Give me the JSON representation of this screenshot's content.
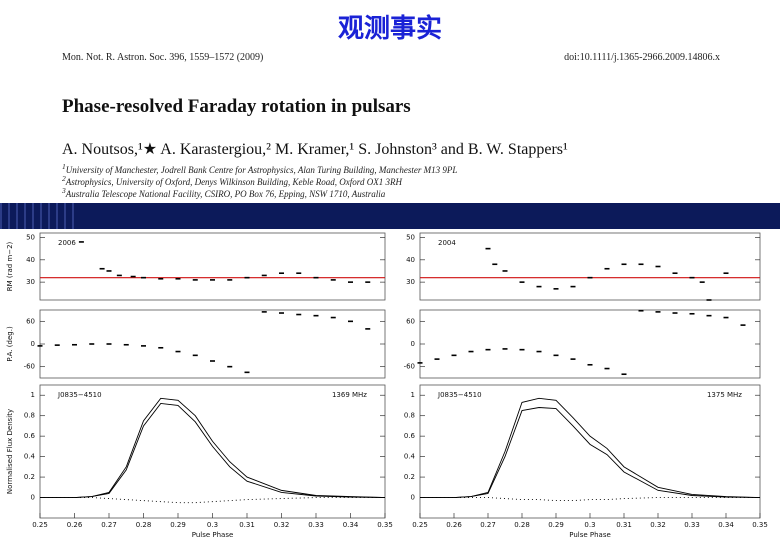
{
  "slide_title": "观测事实",
  "paper": {
    "journal": "Mon. Not. R. Astron. Soc. 396, 1559–1572 (2009)",
    "doi": "doi:10.1111/j.1365-2966.2009.14806.x",
    "title": "Phase-resolved Faraday rotation in pulsars",
    "authors": "A. Noutsos,¹★ A. Karastergiou,² M. Kramer,¹ S. Johnston³ and B. W. Stappers¹",
    "affiliations": [
      {
        "mark": "1",
        "text": "University of Manchester, Jodrell Bank Centre for Astrophysics, Alan Turing Building, Manchester M13 9PL"
      },
      {
        "mark": "2",
        "text": "Astrophysics, University of Oxford, Denys Wilkinson Building, Keble Road, Oxford OX1 3RH"
      },
      {
        "mark": "3",
        "text": "Australia Telescope National Facility, CSIRO, PO Box 76, Epping, NSW 1710, Australia"
      }
    ]
  },
  "chart_data": [
    {
      "type": "scatter",
      "ylabel": "RM (rad m−2)",
      "annotations": [
        "2006"
      ],
      "x": [
        0.262,
        0.268,
        0.27,
        0.273,
        0.277,
        0.28,
        0.285,
        0.29,
        0.295,
        0.3,
        0.305,
        0.31,
        0.315,
        0.32,
        0.325,
        0.33,
        0.335,
        0.34,
        0.345
      ],
      "series": [
        {
          "name": "RM",
          "color": "#000000",
          "values": [
            48,
            36,
            35,
            33,
            32.5,
            32,
            31.5,
            31.5,
            31,
            31,
            31,
            32,
            33,
            34,
            34,
            32,
            31,
            30,
            30
          ]
        }
      ],
      "xlim": [
        0.25,
        0.35
      ],
      "ylim": [
        22,
        52
      ],
      "yticks": [
        30,
        40,
        50
      ],
      "reference_line": 32,
      "reference_color": "#d01010"
    },
    {
      "type": "scatter",
      "ylabel": "P.A. (deg.)",
      "x": [
        0.25,
        0.255,
        0.26,
        0.265,
        0.27,
        0.275,
        0.28,
        0.285,
        0.29,
        0.295,
        0.3,
        0.305,
        0.31,
        0.315,
        0.32,
        0.325,
        0.33,
        0.335,
        0.34,
        0.345
      ],
      "series": [
        {
          "name": "P.A.",
          "color": "#000000",
          "values": [
            -5,
            -3,
            -2,
            0,
            0,
            -2,
            -5,
            -10,
            -20,
            -30,
            -45,
            -60,
            -75,
            85,
            82,
            78,
            75,
            70,
            60,
            40
          ]
        }
      ],
      "xlim": [
        0.25,
        0.35
      ],
      "ylim": [
        -90,
        90
      ],
      "yticks": [
        -60,
        0,
        60
      ]
    },
    {
      "type": "line",
      "ylabel": "Normalised Flux Density",
      "xlabel": "Pulse Phase",
      "annotations": [
        "J0835−4510",
        "1369 MHz"
      ],
      "x": [
        0.25,
        0.26,
        0.265,
        0.27,
        0.275,
        0.28,
        0.285,
        0.29,
        0.295,
        0.3,
        0.305,
        0.31,
        0.32,
        0.33,
        0.34,
        0.35
      ],
      "series": [
        {
          "name": "I",
          "color": "#000000",
          "values": [
            0,
            0,
            0.01,
            0.05,
            0.3,
            0.75,
            0.97,
            0.95,
            0.8,
            0.55,
            0.35,
            0.2,
            0.07,
            0.02,
            0.01,
            0
          ]
        },
        {
          "name": "L",
          "color": "#000000",
          "values": [
            0,
            0,
            0.01,
            0.04,
            0.27,
            0.7,
            0.92,
            0.9,
            0.74,
            0.5,
            0.3,
            0.16,
            0.05,
            0.015,
            0.005,
            0
          ]
        },
        {
          "name": "V",
          "color": "#000000",
          "dash": "1,3",
          "values": [
            0,
            0,
            0,
            -0.01,
            -0.02,
            -0.03,
            -0.04,
            -0.05,
            -0.05,
            -0.04,
            -0.03,
            -0.02,
            -0.01,
            0,
            0,
            0
          ]
        }
      ],
      "xlim": [
        0.25,
        0.35
      ],
      "ylim": [
        -0.2,
        1.1
      ],
      "yticks": [
        0,
        0.2,
        0.4,
        0.6,
        0.8,
        1
      ],
      "xticks": [
        0.25,
        0.26,
        0.27,
        0.28,
        0.29,
        0.3,
        0.31,
        0.32,
        0.33,
        0.34,
        0.35
      ]
    },
    {
      "type": "scatter",
      "annotations": [
        "2004"
      ],
      "x": [
        0.27,
        0.272,
        0.275,
        0.28,
        0.285,
        0.29,
        0.295,
        0.3,
        0.305,
        0.31,
        0.315,
        0.32,
        0.325,
        0.33,
        0.333,
        0.335,
        0.34
      ],
      "series": [
        {
          "name": "RM",
          "color": "#000000",
          "values": [
            45,
            38,
            35,
            30,
            28,
            27,
            28,
            32,
            36,
            38,
            38,
            37,
            34,
            32,
            30,
            22,
            34
          ]
        }
      ],
      "xlim": [
        0.25,
        0.35
      ],
      "ylim": [
        22,
        52
      ],
      "yticks": [
        30,
        40,
        50
      ],
      "reference_line": 32,
      "reference_color": "#d01010"
    },
    {
      "type": "scatter",
      "x": [
        0.25,
        0.255,
        0.26,
        0.265,
        0.27,
        0.275,
        0.28,
        0.285,
        0.29,
        0.295,
        0.3,
        0.305,
        0.31,
        0.315,
        0.32,
        0.325,
        0.33,
        0.335,
        0.34,
        0.345
      ],
      "series": [
        {
          "name": "P.A.",
          "color": "#000000",
          "values": [
            -50,
            -40,
            -30,
            -20,
            -15,
            -13,
            -15,
            -20,
            -30,
            -40,
            -55,
            -65,
            -80,
            88,
            85,
            82,
            80,
            75,
            70,
            50
          ]
        }
      ],
      "xlim": [
        0.25,
        0.35
      ],
      "ylim": [
        -90,
        90
      ],
      "yticks": [
        -60,
        0,
        60
      ]
    },
    {
      "type": "line",
      "xlabel": "Pulse Phase",
      "annotations": [
        "J0835−4510",
        "1375 MHz"
      ],
      "x": [
        0.25,
        0.26,
        0.265,
        0.27,
        0.275,
        0.28,
        0.285,
        0.29,
        0.295,
        0.3,
        0.305,
        0.31,
        0.32,
        0.33,
        0.34,
        0.35
      ],
      "series": [
        {
          "name": "I",
          "color": "#000000",
          "values": [
            0,
            0,
            0.01,
            0.05,
            0.45,
            0.93,
            0.97,
            0.95,
            0.78,
            0.6,
            0.48,
            0.3,
            0.1,
            0.03,
            0.01,
            0
          ]
        },
        {
          "name": "L",
          "color": "#000000",
          "values": [
            0,
            0,
            0.01,
            0.04,
            0.4,
            0.85,
            0.88,
            0.87,
            0.7,
            0.52,
            0.42,
            0.25,
            0.07,
            0.02,
            0.005,
            0
          ]
        },
        {
          "name": "V",
          "color": "#000000",
          "dash": "1,3",
          "values": [
            0,
            0,
            0,
            0,
            -0.01,
            -0.02,
            -0.02,
            -0.03,
            -0.03,
            -0.02,
            -0.02,
            -0.01,
            0,
            0,
            0,
            0
          ]
        }
      ],
      "xlim": [
        0.25,
        0.35
      ],
      "ylim": [
        -0.2,
        1.1
      ],
      "yticks": [
        0,
        0.2,
        0.4,
        0.6,
        0.8,
        1
      ],
      "xticks": [
        0.25,
        0.26,
        0.27,
        0.28,
        0.29,
        0.3,
        0.31,
        0.32,
        0.33,
        0.34,
        0.35
      ]
    }
  ]
}
